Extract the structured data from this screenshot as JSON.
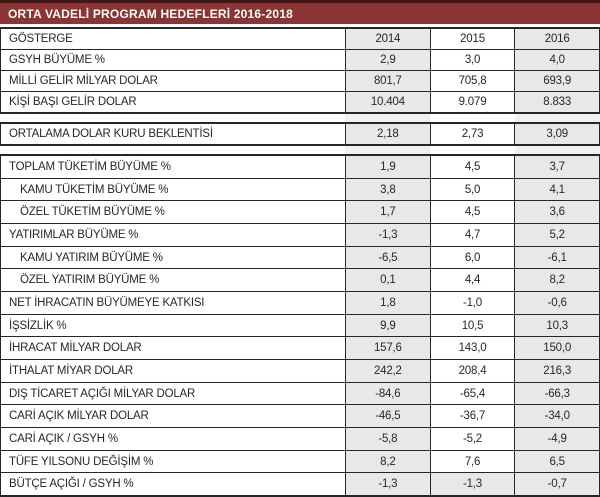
{
  "title": "ORTA VADELİ PROGRAM HEDEFLERİ 2016-2018",
  "colors": {
    "header_bg": "#8a3434",
    "header_top_border": "#401616",
    "column_stripe": "#e8e8e8",
    "gap_stripe": "#f0f0f0",
    "grid": "#262626",
    "text": "#232730"
  },
  "chart_data": {
    "type": "table",
    "title": "ORTA VADELİ PROGRAM HEDEFLERİ 2016-2018",
    "columns": [
      "GÖSTERGE",
      "2014",
      "2015",
      "2016"
    ],
    "sections": [
      {
        "rows": [
          {
            "label": "GÖSTERGE",
            "values": [
              "2014",
              "2015",
              "2016"
            ],
            "header": true
          },
          {
            "label": "GSYH BÜYÜME %",
            "values": [
              "2,9",
              "3,0",
              "4,0"
            ]
          },
          {
            "label": "MİLLİ GELİR MİLYAR DOLAR",
            "values": [
              "801,7",
              "705,8",
              "693,9"
            ]
          },
          {
            "label": "KİŞİ BAŞI GELİR DOLAR",
            "values": [
              "10.404",
              "9.079",
              "8.833"
            ]
          }
        ]
      },
      {
        "rows": [
          {
            "label": "ORTALAMA DOLAR KURU BEKLENTİSİ",
            "values": [
              "2,18",
              "2,73",
              "3,09"
            ]
          }
        ]
      },
      {
        "rows": [
          {
            "label": "TOPLAM TÜKETİM BÜYÜME %",
            "values": [
              "1,9",
              "4,5",
              "3,7"
            ]
          },
          {
            "label": "KAMU TÜKETİM BÜYÜME %",
            "values": [
              "3,8",
              "5,0",
              "4,1"
            ],
            "indent": true
          },
          {
            "label": "ÖZEL TÜKETİM BÜYÜME %",
            "values": [
              "1,7",
              "4,5",
              "3,6"
            ],
            "indent": true
          },
          {
            "label": "YATIRIMLAR BÜYÜME %",
            "values": [
              "-1,3",
              "4,7",
              "5,2"
            ]
          },
          {
            "label": "KAMU YATIRIM BÜYÜME %",
            "values": [
              "-6,5",
              "6,0",
              "-6,1"
            ],
            "indent": true
          },
          {
            "label": "ÖZEL YATIRIM BÜYÜME %",
            "values": [
              "0,1",
              "4,4",
              "8,2"
            ],
            "indent": true
          },
          {
            "label": "NET İHRACATIN BÜYÜMEYE KATKISI",
            "values": [
              "1,8",
              "-1,0",
              "-0,6"
            ]
          },
          {
            "label": "İŞSİZLİK %",
            "values": [
              "9,9",
              "10,5",
              "10,3"
            ]
          },
          {
            "label": "İHRACAT MİLYAR DOLAR",
            "values": [
              "157,6",
              "143,0",
              "150,0"
            ]
          },
          {
            "label": "İTHALAT MİYAR DOLAR",
            "values": [
              "242,2",
              "208,4",
              "216,3"
            ]
          },
          {
            "label": "DIŞ TİCARET AÇIĞI MİLYAR DOLAR",
            "values": [
              "-84,6",
              "-65,4",
              "-66,3"
            ]
          },
          {
            "label": "CARİ AÇIK MİLYAR DOLAR",
            "values": [
              "-46,5",
              "-36,7",
              "-34,0"
            ]
          },
          {
            "label": "CARİ AÇIK / GSYH %",
            "values": [
              "-5,8",
              "-5,2",
              "-4,9"
            ]
          },
          {
            "label": "TÜFE YILSONU DEĞİŞİM %",
            "values": [
              "8,2",
              "7,6",
              "6,5"
            ]
          },
          {
            "label": "BÜTÇE AÇIĞI / GSYH %",
            "values": [
              "-1,3",
              "-1,3",
              "-0,7"
            ],
            "shaded": true
          }
        ]
      }
    ]
  }
}
